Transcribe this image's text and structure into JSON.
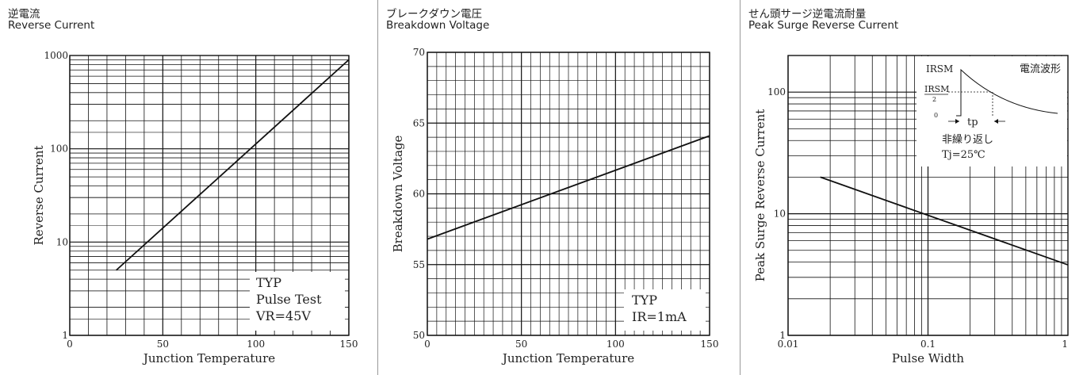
{
  "chart_data": [
    {
      "type": "line",
      "title": "逆電流",
      "subtitle": "Reverse Current",
      "xlabel": "Junction Temperature",
      "ylabel": "Reverse Current",
      "xlim": [
        0,
        150
      ],
      "ylim": [
        1,
        1000
      ],
      "yscale": "log",
      "grid": true,
      "x_ticks": [
        "0",
        "50",
        "100",
        "150"
      ],
      "y_ticks": [
        "1",
        "10",
        "100",
        "1000"
      ],
      "series": [
        {
          "x": [
            25,
            150
          ],
          "y": [
            5,
            900
          ]
        }
      ],
      "annotation": [
        "TYP",
        "Pulse Test",
        "VR=45V"
      ]
    },
    {
      "type": "line",
      "title": "ブレークダウン電圧",
      "subtitle": "Breakdown Voltage",
      "xlabel": "Junction Temperature",
      "ylabel": "Breakdown Voltage",
      "xlim": [
        0,
        150
      ],
      "ylim": [
        50,
        70
      ],
      "grid": true,
      "x_ticks": [
        "0",
        "50",
        "100",
        "150"
      ],
      "y_ticks": [
        "50",
        "55",
        "60",
        "65",
        "70"
      ],
      "series": [
        {
          "x": [
            0,
            150
          ],
          "y": [
            56.8,
            64.1
          ]
        }
      ],
      "annotation": [
        "TYP",
        "IR=1mA"
      ]
    },
    {
      "type": "line",
      "title": "せん頭サージ逆電流耐量",
      "subtitle": "Peak Surge Reverse Current",
      "xlabel": "Pulse Width",
      "ylabel": "Peak Surge Reverse Current",
      "xlim": [
        0.01,
        1
      ],
      "ylim": [
        1,
        200
      ],
      "xscale": "log",
      "yscale": "log",
      "grid": true,
      "x_ticks": [
        "0.01",
        "0.1",
        "1"
      ],
      "y_ticks": [
        "1",
        "10",
        "100"
      ],
      "series": [
        {
          "x": [
            0.017,
            1
          ],
          "y": [
            20,
            3.8
          ]
        }
      ],
      "inset": {
        "irsm": "IRSM",
        "irsm_half_num": "IRSM",
        "irsm_half_den": "2",
        "zero": "0",
        "tp": "tp",
        "waveform": "電流波形",
        "non_repetitive": "非繰り返し",
        "tj": "Tj=25℃"
      }
    }
  ]
}
